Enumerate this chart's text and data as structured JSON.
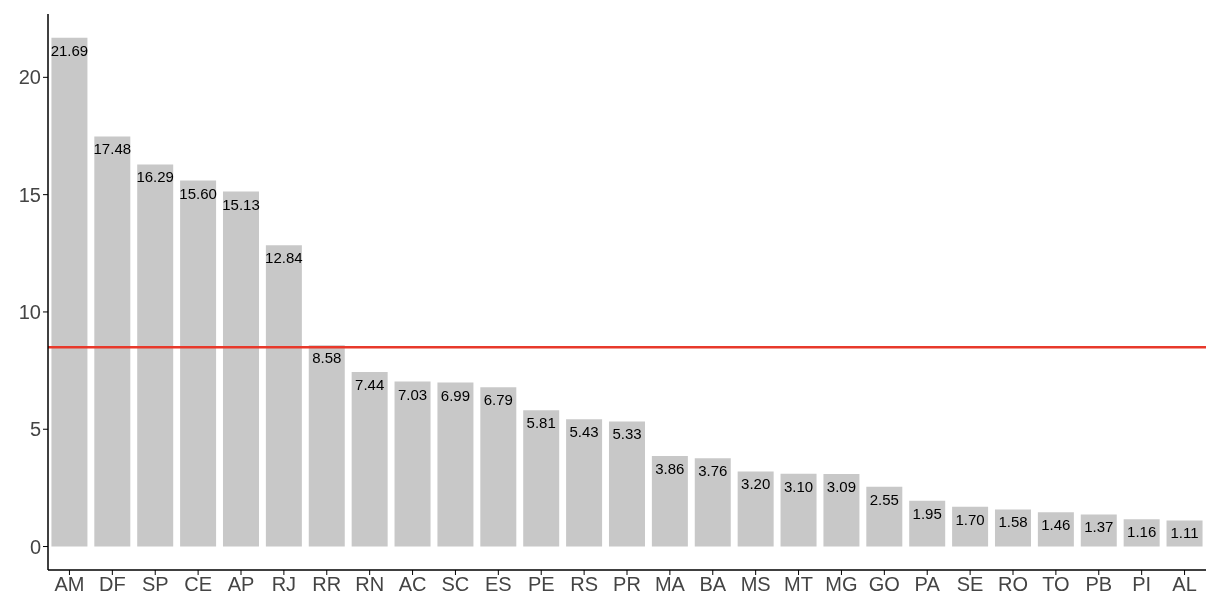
{
  "chart_data": {
    "type": "bar",
    "categories": [
      "AM",
      "DF",
      "SP",
      "CE",
      "AP",
      "RJ",
      "RR",
      "RN",
      "AC",
      "SC",
      "ES",
      "PE",
      "RS",
      "PR",
      "MA",
      "BA",
      "MS",
      "MT",
      "MG",
      "GO",
      "PA",
      "SE",
      "RO",
      "TO",
      "PB",
      "PI",
      "AL"
    ],
    "values": [
      21.69,
      17.48,
      16.29,
      15.6,
      15.13,
      12.84,
      8.58,
      7.44,
      7.03,
      6.99,
      6.79,
      5.81,
      5.43,
      5.33,
      3.86,
      3.76,
      3.2,
      3.1,
      3.09,
      2.55,
      1.95,
      1.7,
      1.58,
      1.46,
      1.37,
      1.16,
      1.11
    ],
    "value_labels": [
      "21.69",
      "17.48",
      "16.29",
      "15.60",
      "15.13",
      "12.84",
      "8.58",
      "7.44",
      "7.03",
      "6.99",
      "6.79",
      "5.81",
      "5.43",
      "5.33",
      "3.86",
      "3.76",
      "3.20",
      "3.10",
      "3.09",
      "2.55",
      "1.95",
      "1.70",
      "1.58",
      "1.46",
      "1.37",
      "1.16",
      "1.11"
    ],
    "color": "#c8c8c8",
    "ylim": [
      -1,
      22.7
    ],
    "yticks": [
      0,
      5,
      10,
      15,
      20
    ],
    "grid": false,
    "legend": false,
    "ref_lines": [
      {
        "axis": "y",
        "value": 8.5,
        "color": "#e8392b",
        "line_style": "solid"
      }
    ]
  }
}
